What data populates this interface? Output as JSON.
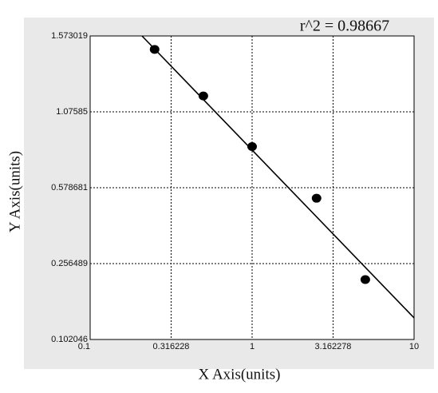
{
  "chart_data": {
    "type": "scatter",
    "title": "r^2  = 0.98667",
    "x_label": "X Axis(units)",
    "y_label": "Y Axis(units)",
    "x": [
      0.25,
      0.5,
      1,
      2.5,
      5
    ],
    "values": [
      1.485,
      1.18,
      0.848,
      0.534,
      0.224
    ],
    "fit_line": {
      "x": [
        0.209,
        10
      ],
      "y": [
        1.573019,
        0.146
      ]
    },
    "xlim": [
      0.1,
      10
    ],
    "xticks": [
      0.1,
      0.316228,
      1,
      3.162278,
      10
    ],
    "x_log": true,
    "ylim": [
      0.102046,
      1.573019
    ],
    "yticks": [
      0.102046,
      0.256489,
      0.578681,
      1.07585,
      1.573019
    ],
    "grid": true,
    "color": "#000000"
  }
}
